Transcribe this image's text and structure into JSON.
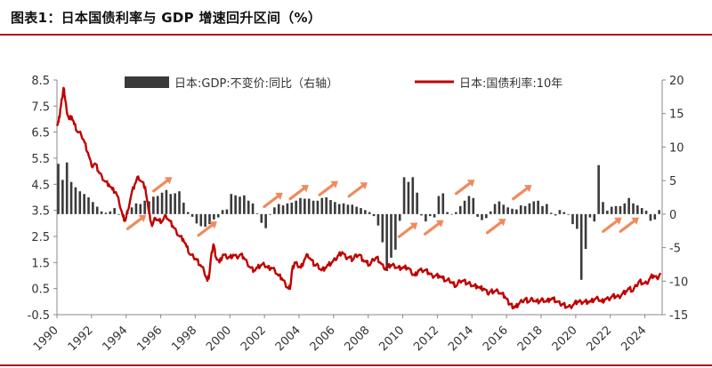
{
  "header": {
    "title": "图表1：日本国债利率与 GDP 增速回升区间（%）"
  },
  "colors": {
    "accent": "#b3121c",
    "bars": "#3a3a3a",
    "line": "#c00000",
    "arrows": "#f08a5d"
  },
  "chart_data": {
    "type": "bar+line",
    "title": "",
    "xlabel": "",
    "ylabel": "",
    "x_range": [
      1990,
      2025
    ],
    "x_ticks": [
      "1990",
      "1992",
      "1994",
      "1996",
      "1998",
      "2000",
      "2002",
      "2004",
      "2006",
      "2008",
      "2010",
      "2012",
      "2014",
      "2016",
      "2018",
      "2020",
      "2022",
      "2024"
    ],
    "ylim_left": [
      -0.5,
      8.5
    ],
    "y_ticks_left": [
      "-0.5",
      "0.5",
      "1.5",
      "2.5",
      "3.5",
      "4.5",
      "5.5",
      "6.5",
      "7.5",
      "8.5"
    ],
    "ylim_right": [
      -15,
      20
    ],
    "y_ticks_right": [
      "-15",
      "-10",
      "-5",
      "0",
      "5",
      "10",
      "15",
      "20"
    ],
    "legend_position": "top",
    "series": [
      {
        "name": "日本:GDP:不变价:同比（右轴）",
        "type": "bar",
        "axis": "right",
        "x": [
          1990.0,
          1990.25,
          1990.5,
          1990.75,
          1991.0,
          1991.25,
          1991.5,
          1991.75,
          1992.0,
          1992.25,
          1992.5,
          1992.75,
          1993.0,
          1993.25,
          1993.5,
          1993.75,
          1994.0,
          1994.25,
          1994.5,
          1994.75,
          1995.0,
          1995.25,
          1995.5,
          1995.75,
          1996.0,
          1996.25,
          1996.5,
          1996.75,
          1997.0,
          1997.25,
          1997.5,
          1997.75,
          1998.0,
          1998.25,
          1998.5,
          1998.75,
          1999.0,
          1999.25,
          1999.5,
          1999.75,
          2000.0,
          2000.25,
          2000.5,
          2000.75,
          2001.0,
          2001.25,
          2001.5,
          2001.75,
          2002.0,
          2002.25,
          2002.5,
          2002.75,
          2003.0,
          2003.25,
          2003.5,
          2003.75,
          2004.0,
          2004.25,
          2004.5,
          2004.75,
          2005.0,
          2005.25,
          2005.5,
          2005.75,
          2006.0,
          2006.25,
          2006.5,
          2006.75,
          2007.0,
          2007.25,
          2007.5,
          2007.75,
          2008.0,
          2008.25,
          2008.5,
          2008.75,
          2009.0,
          2009.25,
          2009.5,
          2009.75,
          2010.0,
          2010.25,
          2010.5,
          2010.75,
          2011.0,
          2011.25,
          2011.5,
          2011.75,
          2012.0,
          2012.25,
          2012.5,
          2012.75,
          2013.0,
          2013.25,
          2013.5,
          2013.75,
          2014.0,
          2014.25,
          2014.5,
          2014.75,
          2015.0,
          2015.25,
          2015.5,
          2015.75,
          2016.0,
          2016.25,
          2016.5,
          2016.75,
          2017.0,
          2017.25,
          2017.5,
          2017.75,
          2018.0,
          2018.25,
          2018.5,
          2018.75,
          2019.0,
          2019.25,
          2019.5,
          2019.75,
          2020.0,
          2020.25,
          2020.5,
          2020.75,
          2021.0,
          2021.25,
          2021.5,
          2021.75,
          2022.0,
          2022.25,
          2022.5,
          2022.75,
          2023.0,
          2023.25,
          2023.5,
          2023.75,
          2024.0,
          2024.25,
          2024.5,
          2024.75
        ],
        "values": [
          7.5,
          5.1,
          7.7,
          4.8,
          4.0,
          3.4,
          3.0,
          2.5,
          1.8,
          1.1,
          0.4,
          0.2,
          0.4,
          0.9,
          -0.1,
          -0.5,
          0.5,
          1.0,
          1.6,
          1.5,
          2.0,
          1.9,
          2.6,
          2.7,
          3.2,
          3.6,
          3.0,
          3.1,
          3.4,
          1.7,
          0.3,
          -0.4,
          -1.4,
          -1.8,
          -1.9,
          -1.5,
          -0.8,
          -0.5,
          0.6,
          0.7,
          3.0,
          2.8,
          2.6,
          2.8,
          2.0,
          1.6,
          0.1,
          -1.3,
          -2.1,
          -0.1,
          1.0,
          1.5,
          1.3,
          1.6,
          1.7,
          2.0,
          2.4,
          2.3,
          2.3,
          2.0,
          2.0,
          2.4,
          2.5,
          2.1,
          1.8,
          1.5,
          1.6,
          1.4,
          1.4,
          1.1,
          0.9,
          0.6,
          0.3,
          -0.3,
          -1.7,
          -4.2,
          -8.5,
          -6.5,
          -5.3,
          -1.0,
          5.5,
          4.8,
          5.5,
          3.2,
          -0.2,
          -1.1,
          -0.3,
          -0.5,
          2.7,
          3.1,
          0.3,
          0.0,
          0.3,
          1.2,
          2.0,
          2.7,
          2.4,
          -0.4,
          -0.9,
          -0.6,
          0.4,
          1.5,
          1.9,
          1.4,
          1.0,
          0.8,
          0.7,
          1.3,
          1.2,
          1.6,
          1.9,
          2.0,
          1.2,
          1.5,
          0.2,
          -0.2,
          0.6,
          0.3,
          -0.1,
          -1.5,
          -2.2,
          -9.8,
          -5.2,
          -0.5,
          -1.1,
          7.3,
          1.8,
          0.5,
          1.1,
          1.2,
          1.2,
          1.6,
          2.4,
          1.6,
          1.3,
          0.9,
          0.5,
          -1.0,
          -0.8,
          0.6
        ]
      },
      {
        "name": "日本:国债利率:10年",
        "type": "line",
        "axis": "left",
        "points": [
          [
            1990.0,
            6.8
          ],
          [
            1990.1,
            6.9
          ],
          [
            1990.2,
            7.4
          ],
          [
            1990.3,
            7.8
          ],
          [
            1990.38,
            8.2
          ],
          [
            1990.45,
            7.9
          ],
          [
            1990.55,
            7.4
          ],
          [
            1990.7,
            7.0
          ],
          [
            1990.85,
            7.1
          ],
          [
            1991.0,
            6.8
          ],
          [
            1991.2,
            6.5
          ],
          [
            1991.4,
            6.4
          ],
          [
            1991.6,
            6.1
          ],
          [
            1991.8,
            5.7
          ],
          [
            1992.0,
            5.2
          ],
          [
            1992.2,
            5.3
          ],
          [
            1992.4,
            5.0
          ],
          [
            1992.6,
            4.8
          ],
          [
            1992.8,
            4.6
          ],
          [
            1993.0,
            4.5
          ],
          [
            1993.2,
            4.3
          ],
          [
            1993.4,
            4.2
          ],
          [
            1993.6,
            3.8
          ],
          [
            1993.8,
            3.3
          ],
          [
            1993.95,
            3.1
          ],
          [
            1994.1,
            3.5
          ],
          [
            1994.3,
            4.1
          ],
          [
            1994.5,
            4.5
          ],
          [
            1994.7,
            4.8
          ],
          [
            1994.9,
            4.6
          ],
          [
            1995.1,
            4.4
          ],
          [
            1995.3,
            3.5
          ],
          [
            1995.5,
            2.9
          ],
          [
            1995.7,
            3.2
          ],
          [
            1995.9,
            3.1
          ],
          [
            1996.1,
            3.1
          ],
          [
            1996.3,
            3.3
          ],
          [
            1996.5,
            3.1
          ],
          [
            1996.7,
            2.9
          ],
          [
            1996.9,
            2.7
          ],
          [
            1997.1,
            2.5
          ],
          [
            1997.3,
            2.4
          ],
          [
            1997.5,
            2.1
          ],
          [
            1997.7,
            1.8
          ],
          [
            1997.9,
            1.7
          ],
          [
            1998.1,
            1.6
          ],
          [
            1998.3,
            1.4
          ],
          [
            1998.5,
            1.2
          ],
          [
            1998.7,
            0.8
          ],
          [
            1998.8,
            1.0
          ],
          [
            1998.95,
            1.9
          ],
          [
            1999.05,
            2.2
          ],
          [
            1999.2,
            1.7
          ],
          [
            1999.4,
            1.5
          ],
          [
            1999.6,
            1.8
          ],
          [
            1999.8,
            1.7
          ],
          [
            2000.0,
            1.7
          ],
          [
            2000.2,
            1.8
          ],
          [
            2000.4,
            1.7
          ],
          [
            2000.6,
            1.8
          ],
          [
            2000.8,
            1.7
          ],
          [
            2001.0,
            1.5
          ],
          [
            2001.2,
            1.3
          ],
          [
            2001.4,
            1.2
          ],
          [
            2001.6,
            1.3
          ],
          [
            2001.8,
            1.4
          ],
          [
            2002.0,
            1.4
          ],
          [
            2002.2,
            1.3
          ],
          [
            2002.4,
            1.3
          ],
          [
            2002.6,
            1.2
          ],
          [
            2002.8,
            1.0
          ],
          [
            2003.0,
            0.9
          ],
          [
            2003.2,
            0.7
          ],
          [
            2003.4,
            0.5
          ],
          [
            2003.5,
            0.6
          ],
          [
            2003.6,
            1.2
          ],
          [
            2003.75,
            1.5
          ],
          [
            2003.9,
            1.4
          ],
          [
            2004.1,
            1.3
          ],
          [
            2004.3,
            1.6
          ],
          [
            2004.5,
            1.8
          ],
          [
            2004.7,
            1.6
          ],
          [
            2004.9,
            1.4
          ],
          [
            2005.1,
            1.4
          ],
          [
            2005.3,
            1.2
          ],
          [
            2005.5,
            1.3
          ],
          [
            2005.7,
            1.4
          ],
          [
            2005.9,
            1.5
          ],
          [
            2006.1,
            1.6
          ],
          [
            2006.3,
            1.8
          ],
          [
            2006.5,
            1.9
          ],
          [
            2006.7,
            1.7
          ],
          [
            2006.9,
            1.7
          ],
          [
            2007.1,
            1.6
          ],
          [
            2007.3,
            1.8
          ],
          [
            2007.5,
            1.8
          ],
          [
            2007.7,
            1.6
          ],
          [
            2007.9,
            1.5
          ],
          [
            2008.1,
            1.4
          ],
          [
            2008.3,
            1.6
          ],
          [
            2008.5,
            1.7
          ],
          [
            2008.7,
            1.5
          ],
          [
            2008.9,
            1.3
          ],
          [
            2009.1,
            1.3
          ],
          [
            2009.3,
            1.4
          ],
          [
            2009.5,
            1.4
          ],
          [
            2009.7,
            1.3
          ],
          [
            2009.9,
            1.3
          ],
          [
            2010.1,
            1.3
          ],
          [
            2010.3,
            1.3
          ],
          [
            2010.5,
            1.1
          ],
          [
            2010.7,
            1.0
          ],
          [
            2010.9,
            1.2
          ],
          [
            2011.1,
            1.2
          ],
          [
            2011.3,
            1.2
          ],
          [
            2011.5,
            1.1
          ],
          [
            2011.7,
            1.0
          ],
          [
            2011.9,
            1.0
          ],
          [
            2012.1,
            1.0
          ],
          [
            2012.3,
            0.9
          ],
          [
            2012.5,
            0.8
          ],
          [
            2012.7,
            0.8
          ],
          [
            2012.9,
            0.7
          ],
          [
            2013.1,
            0.6
          ],
          [
            2013.3,
            0.8
          ],
          [
            2013.5,
            0.8
          ],
          [
            2013.7,
            0.7
          ],
          [
            2013.9,
            0.7
          ],
          [
            2014.1,
            0.6
          ],
          [
            2014.3,
            0.6
          ],
          [
            2014.5,
            0.5
          ],
          [
            2014.7,
            0.5
          ],
          [
            2014.9,
            0.3
          ],
          [
            2015.1,
            0.4
          ],
          [
            2015.3,
            0.4
          ],
          [
            2015.5,
            0.4
          ],
          [
            2015.7,
            0.3
          ],
          [
            2015.9,
            0.2
          ],
          [
            2016.1,
            0.0
          ],
          [
            2016.2,
            -0.1
          ],
          [
            2016.4,
            -0.2
          ],
          [
            2016.55,
            -0.2
          ],
          [
            2016.7,
            -0.1
          ],
          [
            2016.9,
            0.0
          ],
          [
            2017.1,
            0.1
          ],
          [
            2017.3,
            0.0
          ],
          [
            2017.5,
            0.1
          ],
          [
            2017.7,
            0.0
          ],
          [
            2017.9,
            0.0
          ],
          [
            2018.1,
            0.1
          ],
          [
            2018.3,
            0.0
          ],
          [
            2018.5,
            0.1
          ],
          [
            2018.7,
            0.1
          ],
          [
            2018.9,
            0.0
          ],
          [
            2019.1,
            -0.1
          ],
          [
            2019.3,
            -0.1
          ],
          [
            2019.5,
            -0.2
          ],
          [
            2019.7,
            -0.2
          ],
          [
            2019.9,
            -0.1
          ],
          [
            2020.1,
            0.0
          ],
          [
            2020.3,
            0.0
          ],
          [
            2020.5,
            0.0
          ],
          [
            2020.7,
            0.0
          ],
          [
            2020.9,
            0.0
          ],
          [
            2021.1,
            0.1
          ],
          [
            2021.3,
            0.1
          ],
          [
            2021.5,
            0.0
          ],
          [
            2021.7,
            0.1
          ],
          [
            2021.9,
            0.1
          ],
          [
            2022.1,
            0.2
          ],
          [
            2022.3,
            0.2
          ],
          [
            2022.5,
            0.2
          ],
          [
            2022.7,
            0.3
          ],
          [
            2022.9,
            0.4
          ],
          [
            2023.1,
            0.5
          ],
          [
            2023.3,
            0.4
          ],
          [
            2023.5,
            0.6
          ],
          [
            2023.7,
            0.8
          ],
          [
            2023.9,
            0.7
          ],
          [
            2024.1,
            0.7
          ],
          [
            2024.3,
            0.9
          ],
          [
            2024.5,
            1.0
          ],
          [
            2024.7,
            0.9
          ],
          [
            2024.9,
            1.1
          ]
        ]
      }
    ],
    "annotations": {
      "description": "rising-interval markers",
      "arrows": [
        [
          1994.5,
          3.0
        ],
        [
          1996.0,
          4.45
        ],
        [
          1998.6,
          2.75
        ],
        [
          2002.4,
          3.85
        ],
        [
          2003.9,
          4.15
        ],
        [
          2005.6,
          4.3
        ],
        [
          2007.3,
          4.25
        ],
        [
          2010.2,
          2.7
        ],
        [
          2011.7,
          2.8
        ],
        [
          2013.5,
          4.35
        ],
        [
          2015.3,
          2.85
        ],
        [
          2016.8,
          4.15
        ],
        [
          2022.0,
          2.9
        ],
        [
          2023.0,
          2.9
        ]
      ]
    }
  }
}
